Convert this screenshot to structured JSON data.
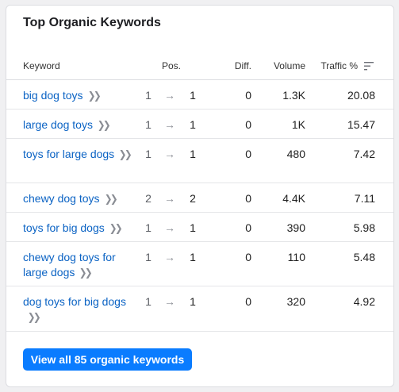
{
  "card": {
    "title": "Top Organic Keywords"
  },
  "table": {
    "headers": {
      "keyword": "Keyword",
      "pos": "Pos.",
      "diff": "Diff.",
      "volume": "Volume",
      "traffic": "Traffic %"
    },
    "rows": [
      {
        "keyword": "big dog toys",
        "prev_pos": "1",
        "cur_pos": "1",
        "diff": "0",
        "volume": "1.3K",
        "traffic": "20.08"
      },
      {
        "keyword": "large dog toys",
        "prev_pos": "1",
        "cur_pos": "1",
        "diff": "0",
        "volume": "1K",
        "traffic": "15.47"
      },
      {
        "keyword": "toys for large dogs",
        "prev_pos": "1",
        "cur_pos": "1",
        "diff": "0",
        "volume": "480",
        "traffic": "7.42"
      },
      {
        "keyword": "chewy dog toys",
        "prev_pos": "2",
        "cur_pos": "2",
        "diff": "0",
        "volume": "4.4K",
        "traffic": "7.11"
      },
      {
        "keyword": "toys for big dogs",
        "prev_pos": "1",
        "cur_pos": "1",
        "diff": "0",
        "volume": "390",
        "traffic": "5.98"
      },
      {
        "keyword": "chewy dog toys for large dogs",
        "prev_pos": "1",
        "cur_pos": "1",
        "diff": "0",
        "volume": "110",
        "traffic": "5.48"
      },
      {
        "keyword": "dog toys for big dogs",
        "prev_pos": "1",
        "cur_pos": "1",
        "diff": "0",
        "volume": "320",
        "traffic": "4.92"
      }
    ]
  },
  "icons": {
    "sort": "sort-lines-icon",
    "keyword_link": "double-chevron-right-icon",
    "position_change": "arrow-right-icon"
  },
  "footer": {
    "view_all_label": "View all 85 organic keywords"
  },
  "colors": {
    "link": "#0b63c4",
    "button": "#0a7cff",
    "background": "#f0f0f2"
  }
}
